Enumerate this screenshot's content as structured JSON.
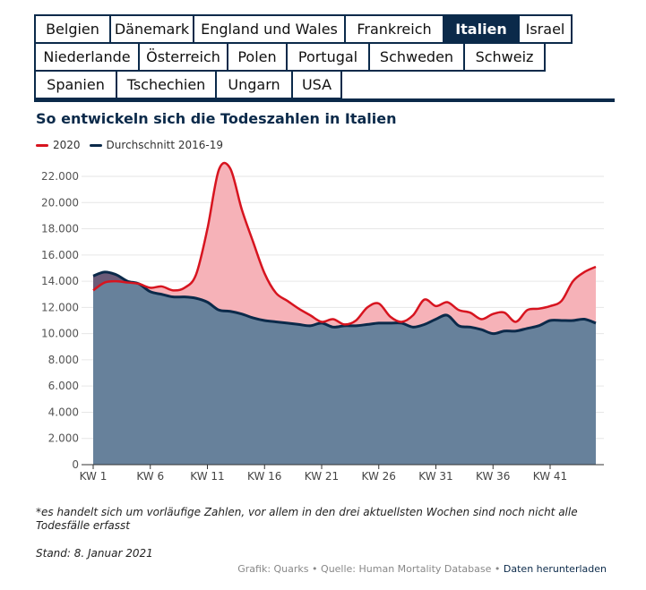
{
  "tabs": {
    "rows": [
      [
        "Belgien",
        "Dänemark",
        "England und Wales",
        "Frankreich",
        "Italien",
        "Israel"
      ],
      [
        "Niederlande",
        "Österreich",
        "Polen",
        "Portugal",
        "Schweden",
        "Schweiz"
      ],
      [
        "Spanien",
        "Tschechien",
        "Ungarn",
        "USA"
      ]
    ],
    "active": "Italien"
  },
  "colors": {
    "accent": "#0b2a4a",
    "series_2020": "#d7141f",
    "series_avg": "#0b2a4a",
    "fill_above": "#f6b2b8",
    "fill_avg": "#647f9a"
  },
  "footnote": "*es handelt sich um vorläufige Zahlen, vor allem in den drei aktuellsten Wochen sind noch nicht alle Todesfälle erfasst",
  "stand": "Stand: 8. Januar 2021",
  "credits": {
    "grafik": "Grafik: Quarks",
    "quelle": "Quelle: Human Mortality Database",
    "download": "Daten herunterladen",
    "separator": "•"
  },
  "chart_data": {
    "type": "area",
    "title": "So entwickeln sich die Todeszahlen in Italien",
    "xlabel": "",
    "ylabel": "",
    "ylim": [
      0,
      24000
    ],
    "yticks": [
      0,
      2000,
      4000,
      6000,
      8000,
      10000,
      12000,
      14000,
      16000,
      18000,
      20000,
      22000
    ],
    "ytick_labels": [
      "0",
      "2.000",
      "4.000",
      "6.000",
      "8.000",
      "10.000",
      "12.000",
      "14.000",
      "16.000",
      "18.000",
      "20.000",
      "22.000"
    ],
    "xlim": [
      1,
      45
    ],
    "xticks": [
      1,
      6,
      11,
      16,
      21,
      26,
      31,
      36,
      41
    ],
    "xtick_labels": [
      "KW 1",
      "KW 6",
      "KW 11",
      "KW 16",
      "KW 21",
      "KW 26",
      "KW 31",
      "KW 36",
      "KW 41"
    ],
    "grid": true,
    "legend": "top-left",
    "weeks": [
      1,
      2,
      3,
      4,
      5,
      6,
      7,
      8,
      9,
      10,
      11,
      12,
      13,
      14,
      15,
      16,
      17,
      18,
      19,
      20,
      21,
      22,
      23,
      24,
      25,
      26,
      27,
      28,
      29,
      30,
      31,
      32,
      33,
      34,
      35,
      36,
      37,
      38,
      39,
      40,
      41,
      42,
      43,
      44,
      45
    ],
    "series": [
      {
        "name": "2020",
        "values": [
          13300,
          13900,
          14000,
          13900,
          13800,
          13500,
          13600,
          13300,
          13500,
          14500,
          18000,
          22500,
          22600,
          19500,
          17000,
          14600,
          13100,
          12500,
          11900,
          11400,
          10900,
          11100,
          10700,
          11000,
          12000,
          12300,
          11300,
          10900,
          11400,
          12600,
          12100,
          12400,
          11800,
          11600,
          11100,
          11500,
          11600,
          10900,
          11800,
          11900,
          12100,
          12500,
          14000,
          14700,
          15100
        ]
      },
      {
        "name": "Durchschnitt 2016-19",
        "values": [
          14400,
          14700,
          14500,
          14000,
          13800,
          13200,
          13000,
          12800,
          12800,
          12700,
          12400,
          11800,
          11700,
          11500,
          11200,
          11000,
          10900,
          10800,
          10700,
          10600,
          10800,
          10500,
          10600,
          10600,
          10700,
          10800,
          10800,
          10800,
          10500,
          10700,
          11100,
          11400,
          10600,
          10500,
          10300,
          10000,
          10200,
          10200,
          10400,
          10600,
          11000,
          11000,
          11000,
          11100,
          10800
        ]
      }
    ]
  }
}
